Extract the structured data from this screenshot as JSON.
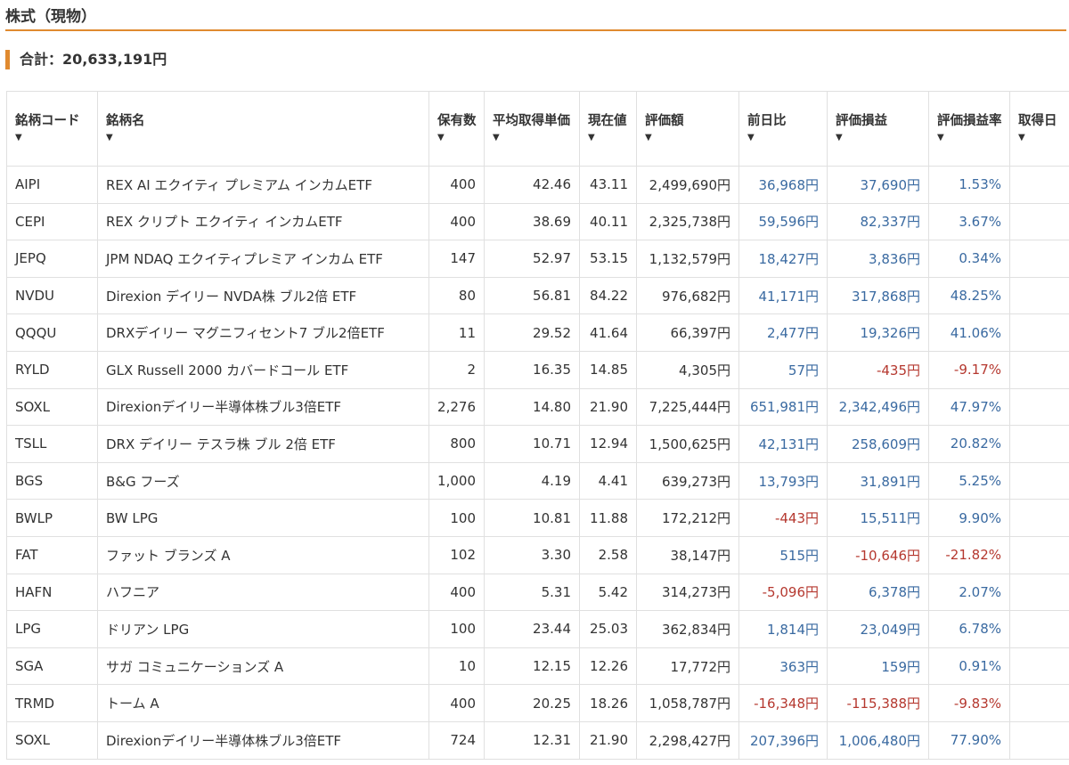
{
  "section": {
    "title": "株式（現物）",
    "total": "合計：20,633,191円"
  },
  "colors": {
    "accent": "#e08a2f",
    "positive": "#3a6aa1",
    "negative": "#b5382f"
  },
  "table": {
    "columns": [
      {
        "label": "銘柄コード",
        "icon": "sort-arrow-icon"
      },
      {
        "label": "銘柄名",
        "icon": "sort-arrow-icon"
      },
      {
        "label": "保有数",
        "icon": "sort-arrow-icon"
      },
      {
        "label": "平均取得単価",
        "icon": "sort-arrow-icon"
      },
      {
        "label": "現在値",
        "icon": "sort-arrow-icon"
      },
      {
        "label": "評価額",
        "icon": "sort-arrow-icon"
      },
      {
        "label": "前日比",
        "icon": "sort-arrow-icon"
      },
      {
        "label": "評価損益",
        "icon": "sort-arrow-icon"
      },
      {
        "label": "評価損益率",
        "icon": "sort-arrow-icon"
      },
      {
        "label": "取得日",
        "icon": "sort-arrow-icon"
      }
    ],
    "rows": [
      {
        "code": "AIPI",
        "name": "REX AI エクイティ プレミアム インカムETF",
        "qty": "400",
        "avg": "42.46",
        "price": "43.11",
        "value": "2,499,690円",
        "day": "36,968円",
        "pl": "37,690円",
        "rate": "1.53%",
        "date": ""
      },
      {
        "code": "CEPI",
        "name": "REX クリプト エクイティ インカムETF",
        "qty": "400",
        "avg": "38.69",
        "price": "40.11",
        "value": "2,325,738円",
        "day": "59,596円",
        "pl": "82,337円",
        "rate": "3.67%",
        "date": ""
      },
      {
        "code": "JEPQ",
        "name": "JPM NDAQ エクイティプレミア インカム ETF",
        "qty": "147",
        "avg": "52.97",
        "price": "53.15",
        "value": "1,132,579円",
        "day": "18,427円",
        "pl": "3,836円",
        "rate": "0.34%",
        "date": ""
      },
      {
        "code": "NVDU",
        "name": "Direxion デイリー NVDA株 ブル2倍 ETF",
        "qty": "80",
        "avg": "56.81",
        "price": "84.22",
        "value": "976,682円",
        "day": "41,171円",
        "pl": "317,868円",
        "rate": "48.25%",
        "date": ""
      },
      {
        "code": "QQQU",
        "name": "DRXデイリー マグニフィセント7 ブル2倍ETF",
        "qty": "11",
        "avg": "29.52",
        "price": "41.64",
        "value": "66,397円",
        "day": "2,477円",
        "pl": "19,326円",
        "rate": "41.06%",
        "date": ""
      },
      {
        "code": "RYLD",
        "name": "GLX Russell 2000 カバードコール ETF",
        "qty": "2",
        "avg": "16.35",
        "price": "14.85",
        "value": "4,305円",
        "day": "57円",
        "pl": "-435円",
        "rate": "-9.17%",
        "date": ""
      },
      {
        "code": "SOXL",
        "name": "Direxionデイリー半導体株ブル3倍ETF",
        "qty": "2,276",
        "avg": "14.80",
        "price": "21.90",
        "value": "7,225,444円",
        "day": "651,981円",
        "pl": "2,342,496円",
        "rate": "47.97%",
        "date": ""
      },
      {
        "code": "TSLL",
        "name": "DRX デイリー テスラ株 ブル 2倍 ETF",
        "qty": "800",
        "avg": "10.71",
        "price": "12.94",
        "value": "1,500,625円",
        "day": "42,131円",
        "pl": "258,609円",
        "rate": "20.82%",
        "date": ""
      },
      {
        "code": "BGS",
        "name": "B&G フーズ",
        "qty": "1,000",
        "avg": "4.19",
        "price": "4.41",
        "value": "639,273円",
        "day": "13,793円",
        "pl": "31,891円",
        "rate": "5.25%",
        "date": ""
      },
      {
        "code": "BWLP",
        "name": "BW LPG",
        "qty": "100",
        "avg": "10.81",
        "price": "11.88",
        "value": "172,212円",
        "day": "-443円",
        "pl": "15,511円",
        "rate": "9.90%",
        "date": ""
      },
      {
        "code": "FAT",
        "name": "ファット ブランズ A",
        "qty": "102",
        "avg": "3.30",
        "price": "2.58",
        "value": "38,147円",
        "day": "515円",
        "pl": "-10,646円",
        "rate": "-21.82%",
        "date": ""
      },
      {
        "code": "HAFN",
        "name": "ハフニア",
        "qty": "400",
        "avg": "5.31",
        "price": "5.42",
        "value": "314,273円",
        "day": "-5,096円",
        "pl": "6,378円",
        "rate": "2.07%",
        "date": ""
      },
      {
        "code": "LPG",
        "name": "ドリアン LPG",
        "qty": "100",
        "avg": "23.44",
        "price": "25.03",
        "value": "362,834円",
        "day": "1,814円",
        "pl": "23,049円",
        "rate": "6.78%",
        "date": ""
      },
      {
        "code": "SGA",
        "name": "サガ コミュニケーションズ A",
        "qty": "10",
        "avg": "12.15",
        "price": "12.26",
        "value": "17,772円",
        "day": "363円",
        "pl": "159円",
        "rate": "0.91%",
        "date": ""
      },
      {
        "code": "TRMD",
        "name": "トーム A",
        "qty": "400",
        "avg": "20.25",
        "price": "18.26",
        "value": "1,058,787円",
        "day": "-16,348円",
        "pl": "-115,388円",
        "rate": "-9.83%",
        "date": ""
      },
      {
        "code": "SOXL",
        "name": "Direxionデイリー半導体株ブル3倍ETF",
        "qty": "724",
        "avg": "12.31",
        "price": "21.90",
        "value": "2,298,427円",
        "day": "207,396円",
        "pl": "1,006,480円",
        "rate": "77.90%",
        "date": ""
      }
    ]
  }
}
